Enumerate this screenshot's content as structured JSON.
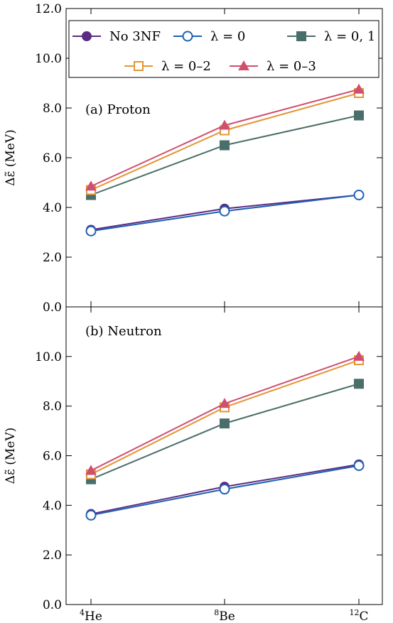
{
  "chart_data": [
    {
      "type": "line",
      "panel_label": "(a) Proton",
      "categories": [
        "4He",
        "8Be",
        "12C"
      ],
      "category_labels": [
        {
          "sup": "4",
          "base": "He"
        },
        {
          "sup": "8",
          "base": "Be"
        },
        {
          "sup": "12",
          "base": "C"
        }
      ],
      "ylabel": "Δε̃ (MeV)",
      "ylim": [
        0.0,
        12.0
      ],
      "yticks": [
        "0.0",
        "2.0",
        "4.0",
        "6.0",
        "8.0",
        "10.0",
        "12.0"
      ],
      "grid": false,
      "legend": {
        "placement": "top",
        "entries": [
          "No 3NF",
          "λ = 0",
          "λ = 0, 1",
          "λ = 0–2",
          "λ = 0–3"
        ]
      },
      "series": [
        {
          "name": "No 3NF",
          "values": [
            3.1,
            3.95,
            4.5
          ],
          "color": "#5b2d82",
          "marker": "circle-filled"
        },
        {
          "name": "λ = 0",
          "values": [
            3.05,
            3.85,
            4.5
          ],
          "color": "#1f5fb4",
          "marker": "circle-open"
        },
        {
          "name": "λ = 0, 1",
          "values": [
            4.5,
            6.5,
            7.7
          ],
          "color": "#4a6e69",
          "marker": "square-filled"
        },
        {
          "name": "λ = 0–2",
          "values": [
            4.7,
            7.1,
            8.6
          ],
          "color": "#e39534",
          "marker": "square-open"
        },
        {
          "name": "λ = 0–3",
          "values": [
            4.85,
            7.3,
            8.75
          ],
          "color": "#d04f6f",
          "marker": "triangle-filled"
        }
      ]
    },
    {
      "type": "line",
      "panel_label": "(b) Neutron",
      "categories": [
        "4He",
        "8Be",
        "12C"
      ],
      "category_labels": [
        {
          "sup": "4",
          "base": "He"
        },
        {
          "sup": "8",
          "base": "Be"
        },
        {
          "sup": "12",
          "base": "C"
        }
      ],
      "ylabel": "Δε̃ (MeV)",
      "ylim": [
        0.0,
        12.0
      ],
      "yticks": [
        "0.0",
        "2.0",
        "4.0",
        "6.0",
        "8.0",
        "10.0"
      ],
      "grid": false,
      "series": [
        {
          "name": "No 3NF",
          "values": [
            3.65,
            4.75,
            5.65
          ],
          "color": "#5b2d82",
          "marker": "circle-filled"
        },
        {
          "name": "λ = 0",
          "values": [
            3.6,
            4.65,
            5.6
          ],
          "color": "#1f5fb4",
          "marker": "circle-open"
        },
        {
          "name": "λ = 0, 1",
          "values": [
            5.05,
            7.3,
            8.9
          ],
          "color": "#4a6e69",
          "marker": "square-filled"
        },
        {
          "name": "λ = 0–2",
          "values": [
            5.25,
            7.95,
            9.85
          ],
          "color": "#e39534",
          "marker": "square-open"
        },
        {
          "name": "λ = 0–3",
          "values": [
            5.4,
            8.1,
            10.0
          ],
          "color": "#d04f6f",
          "marker": "triangle-filled"
        }
      ]
    }
  ]
}
